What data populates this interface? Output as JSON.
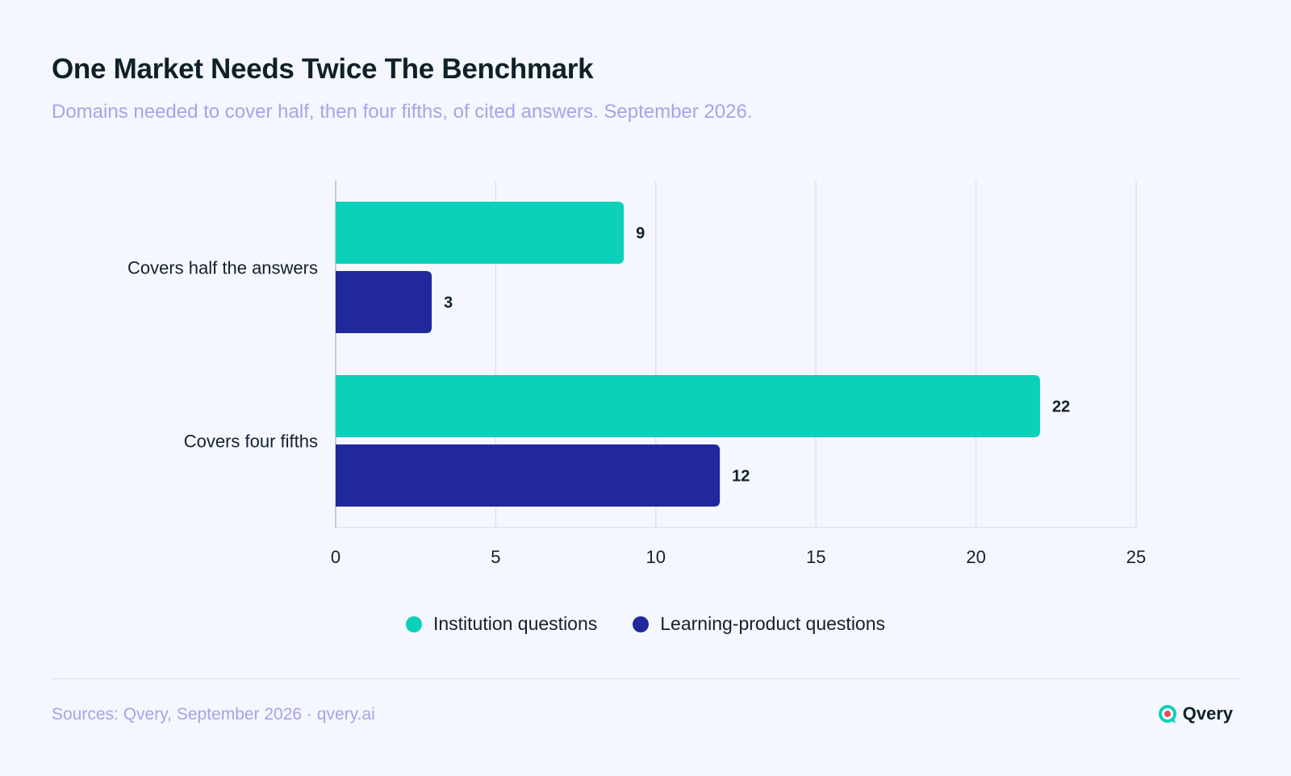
{
  "title": "One Market Needs Twice The Benchmark",
  "subtitle": "Domains needed to cover half, then four fifths, of cited answers. September 2026.",
  "colors": {
    "institution": "#0bd1bb",
    "learning": "#20289b",
    "grid": "#dfe3ec",
    "axis": "#c6cad4"
  },
  "chart_data": {
    "type": "bar",
    "orientation": "horizontal",
    "categories": [
      "Covers half the answers",
      "Covers four fifths"
    ],
    "series": [
      {
        "name": "Institution questions",
        "values": [
          9,
          22
        ],
        "color": "#0bd1bb"
      },
      {
        "name": "Learning-product questions",
        "values": [
          3,
          12
        ],
        "color": "#20289b"
      }
    ],
    "xlim": [
      0,
      25
    ],
    "xticks": [
      0,
      5,
      10,
      15,
      20,
      25
    ],
    "grid": true,
    "legend_position": "bottom-center",
    "data_labels": true
  },
  "legend": {
    "items": [
      {
        "label": "Institution questions",
        "icon": "teal-dot-icon"
      },
      {
        "label": "Learning-product questions",
        "icon": "navy-dot-icon"
      }
    ]
  },
  "footer": {
    "source": "Sources: Qvery, September 2026 · qvery.ai",
    "brand": "Qvery",
    "brand_icon": "qvery-logo-icon"
  }
}
